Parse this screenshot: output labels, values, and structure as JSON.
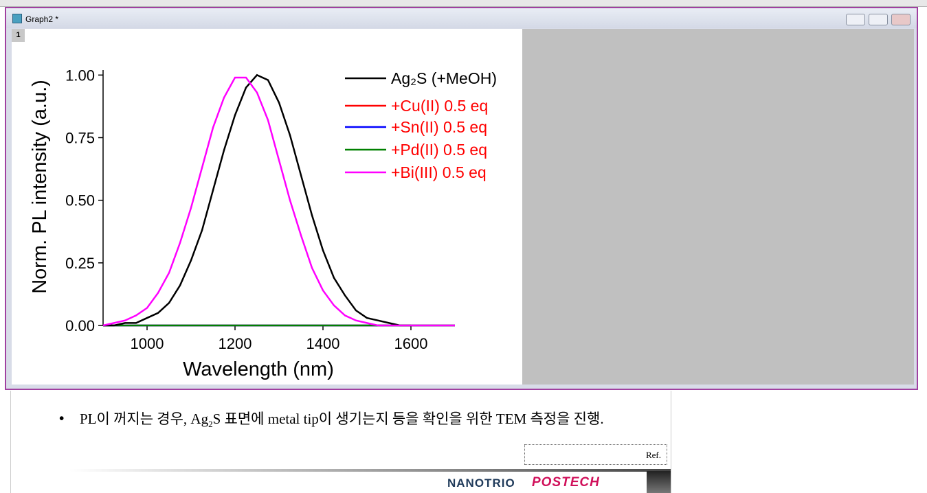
{
  "window": {
    "title": "Graph2 *",
    "layer_tab": "1"
  },
  "chart_data": {
    "type": "line",
    "xlabel": "Wavelength (nm)",
    "ylabel": "Norm. PL intensity (a.u.)",
    "x": [
      900,
      925,
      950,
      975,
      1000,
      1025,
      1050,
      1075,
      1100,
      1125,
      1150,
      1175,
      1200,
      1225,
      1250,
      1275,
      1300,
      1325,
      1350,
      1375,
      1400,
      1425,
      1450,
      1475,
      1500,
      1525,
      1550,
      1575,
      1600,
      1625,
      1650,
      1675,
      1700
    ],
    "xlim": [
      900,
      1700
    ],
    "xticks": [
      1000,
      1200,
      1400,
      1600
    ],
    "ylim": [
      0,
      1.02
    ],
    "yticks": [
      {
        "value": 0,
        "label": "0.00"
      },
      {
        "value": 0.25,
        "label": "0.25"
      },
      {
        "value": 0.5,
        "label": "0.50"
      },
      {
        "value": 0.75,
        "label": "0.75"
      },
      {
        "value": 1,
        "label": "1.00"
      }
    ],
    "series": [
      {
        "name": "Ag₂S (+MeOH)",
        "color": "#000000",
        "label_color": "#000000",
        "values": [
          0,
          0,
          0.01,
          0.01,
          0.03,
          0.05,
          0.09,
          0.16,
          0.26,
          0.38,
          0.54,
          0.7,
          0.84,
          0.95,
          1.0,
          0.98,
          0.89,
          0.76,
          0.6,
          0.44,
          0.3,
          0.19,
          0.12,
          0.06,
          0.03,
          0.02,
          0.01,
          0,
          0,
          null,
          null,
          null,
          null
        ]
      },
      {
        "name": "+Cu(II) 0.5 eq",
        "color": "#ff0000",
        "label_color": "#ff0000",
        "values": [
          0,
          0,
          0,
          0,
          0,
          0,
          0,
          0,
          0,
          0,
          0,
          0,
          0,
          0,
          0,
          0,
          0,
          0,
          0,
          0,
          0,
          0,
          0,
          0,
          0,
          0,
          0,
          0,
          0,
          0,
          0,
          0,
          0
        ]
      },
      {
        "name": "+Sn(II) 0.5 eq",
        "color": "#0000ff",
        "label_color": "#ff0000",
        "values": [
          0,
          0,
          0,
          0,
          0,
          0,
          0,
          0,
          0,
          0,
          0,
          0,
          0,
          0,
          0,
          0,
          0,
          0,
          0,
          0,
          0,
          0,
          0,
          0,
          0,
          0,
          0,
          0,
          0,
          0,
          0,
          0,
          0
        ]
      },
      {
        "name": "+Pd(II) 0.5 eq",
        "color": "#008000",
        "label_color": "#ff0000",
        "values": [
          0,
          0,
          0,
          0,
          0,
          0,
          0,
          0,
          0,
          0,
          0,
          0,
          0,
          0,
          0,
          0,
          0,
          0,
          0,
          0,
          0,
          0,
          0,
          0,
          0,
          0,
          0,
          0,
          0,
          0,
          0,
          0,
          0
        ]
      },
      {
        "name": "+Bi(III) 0.5 eq",
        "color": "#ff00ff",
        "label_color": "#ff0000",
        "values": [
          0,
          0.01,
          0.02,
          0.04,
          0.07,
          0.13,
          0.21,
          0.33,
          0.47,
          0.63,
          0.79,
          0.91,
          0.99,
          0.99,
          0.93,
          0.82,
          0.66,
          0.5,
          0.36,
          0.23,
          0.14,
          0.08,
          0.04,
          0.02,
          0.01,
          0,
          0,
          0,
          0,
          0,
          0,
          0,
          0
        ]
      }
    ]
  },
  "slide": {
    "bullet_parts": [
      "PL이 꺼지는 경우, Ag",
      "2",
      "S 표면에 metal tip이 생기는지 등을 확인을 위한 TEM 측정을 진행."
    ],
    "ref": "Ref.",
    "logo_left": "NANOTRIO",
    "logo_right": "POSTECH"
  }
}
